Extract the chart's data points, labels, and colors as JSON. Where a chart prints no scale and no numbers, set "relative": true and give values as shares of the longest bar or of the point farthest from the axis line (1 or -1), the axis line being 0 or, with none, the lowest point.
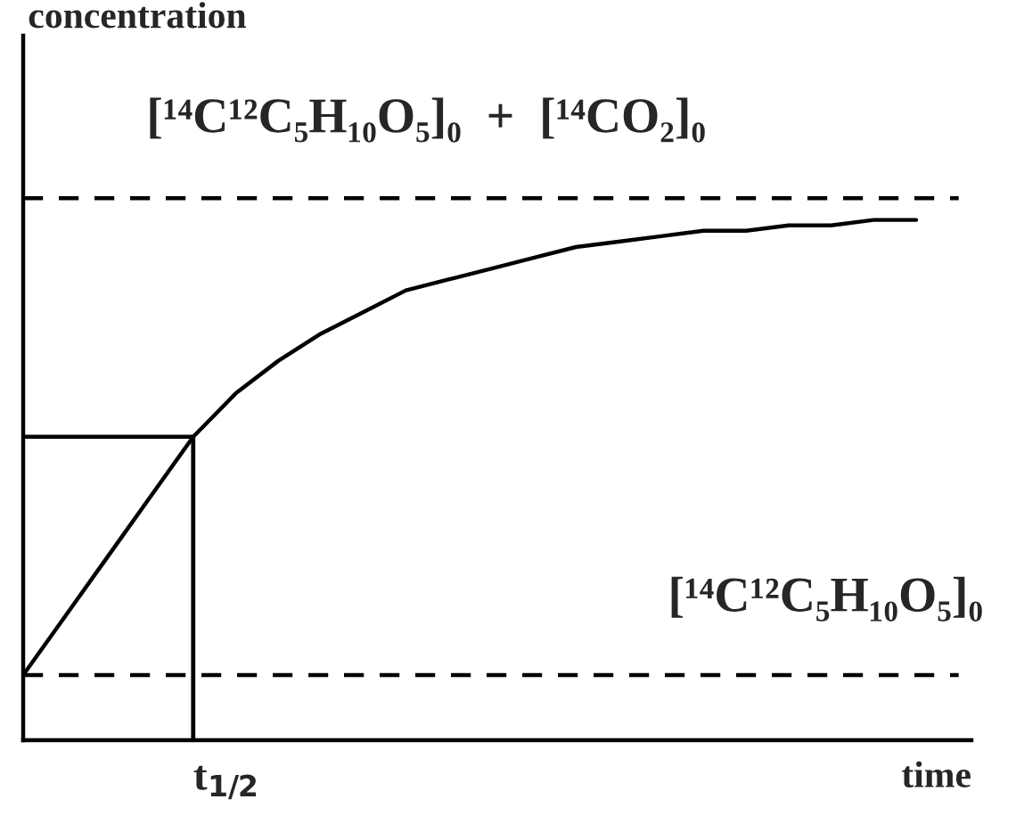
{
  "chart_data": {
    "type": "line",
    "relative": true,
    "xlabel": "time",
    "ylabel": "concentration",
    "categories": [
      null,
      null,
      null,
      null,
      null,
      null,
      null,
      null,
      null,
      null,
      null,
      null,
      null,
      null,
      null,
      null,
      null,
      null,
      null,
      null,
      null,
      null,
      null
    ],
    "series": [
      {
        "color": "#000000",
        "line_style": "solid",
        "values": [
          0.12,
          0.23,
          0.34,
          0.45,
          0.56,
          0.64,
          0.7,
          0.75,
          0.79,
          0.83,
          0.85,
          0.87,
          0.89,
          0.91,
          0.92,
          0.93,
          0.94,
          0.94,
          0.95,
          0.95,
          0.96,
          0.96,
          null
        ]
      },
      {
        "color": "#000000",
        "line_style": "dashed",
        "values": [
          1,
          1,
          1,
          1,
          1,
          1,
          1,
          1,
          1,
          1,
          1,
          1,
          1,
          1,
          1,
          1,
          1,
          1,
          1,
          1,
          1,
          1,
          1
        ]
      },
      {
        "color": "#000000",
        "line_style": "dashed",
        "values": [
          0.12,
          0.12,
          0.12,
          0.12,
          0.12,
          0.12,
          0.12,
          0.12,
          0.12,
          0.12,
          0.12,
          0.12,
          0.12,
          0.12,
          0.12,
          0.12,
          0.12,
          0.12,
          0.12,
          0.12,
          0.12,
          0.12,
          0.12
        ]
      },
      {
        "color": "#000000",
        "line_style": "solid",
        "values": [
          0.56,
          0.56,
          0.56,
          0.56,
          0.56,
          null,
          null,
          null,
          null,
          null,
          null,
          null,
          null,
          null,
          null,
          null,
          null,
          null,
          null,
          null,
          null,
          null,
          null
        ]
      }
    ],
    "annotations": [
      "t$_{1/2}$",
      "[¹⁴C¹²C₅H₁₀O₅]₀  +  [¹⁴CO₂]₀",
      "[¹⁴C¹²C₅H₁₀O₅]₀"
    ]
  }
}
